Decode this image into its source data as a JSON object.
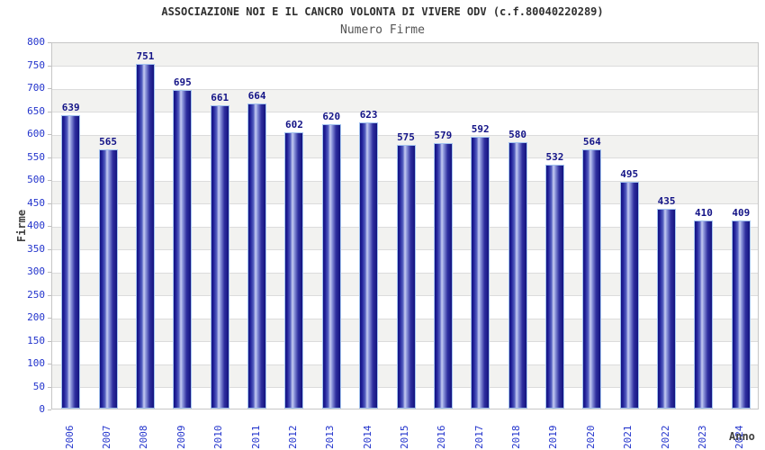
{
  "header": {
    "title": "ASSOCIAZIONE NOI E IL CANCRO VOLONTA DI VIVERE ODV (c.f.80040220289)",
    "subtitle": "Numero Firme"
  },
  "chart_data": {
    "type": "bar",
    "title": "ASSOCIAZIONE NOI E IL CANCRO VOLONTA DI VIVERE ODV (c.f.80040220289)",
    "subtitle": "Numero Firme",
    "categories": [
      "2006",
      "2007",
      "2008",
      "2009",
      "2010",
      "2011",
      "2012",
      "2013",
      "2014",
      "2015",
      "2016",
      "2017",
      "2018",
      "2019",
      "2020",
      "2021",
      "2022",
      "2023",
      "2024"
    ],
    "values": [
      639,
      565,
      751,
      695,
      661,
      664,
      602,
      620,
      623,
      575,
      579,
      592,
      580,
      532,
      564,
      495,
      435,
      410,
      409
    ],
    "xlabel": "Anno",
    "ylabel": "Firme",
    "ylim": [
      0,
      800
    ],
    "ytick_step": 50,
    "yticks": [
      0,
      50,
      100,
      150,
      200,
      250,
      300,
      350,
      400,
      450,
      500,
      550,
      600,
      650,
      700,
      750,
      800
    ],
    "grid": true,
    "legend_position": "none",
    "bands_alternating": true,
    "style": {
      "bar_dark": "#13137f",
      "bar_mid": "#5560c0",
      "bar_highlight": "#c7cdf2",
      "bar_border": "#a3c3ef",
      "axis_tick_color": "#2233cc",
      "value_label_color": "#141487",
      "axis_title_color": "#3f3f3f",
      "band_color": "#f2f2f0",
      "grid_color": "#dcdcdc",
      "plot_border_color": "#c6c6c6",
      "title_color": "#2f2f2f",
      "subtitle_color": "#545454",
      "background": "#ffffff"
    }
  }
}
